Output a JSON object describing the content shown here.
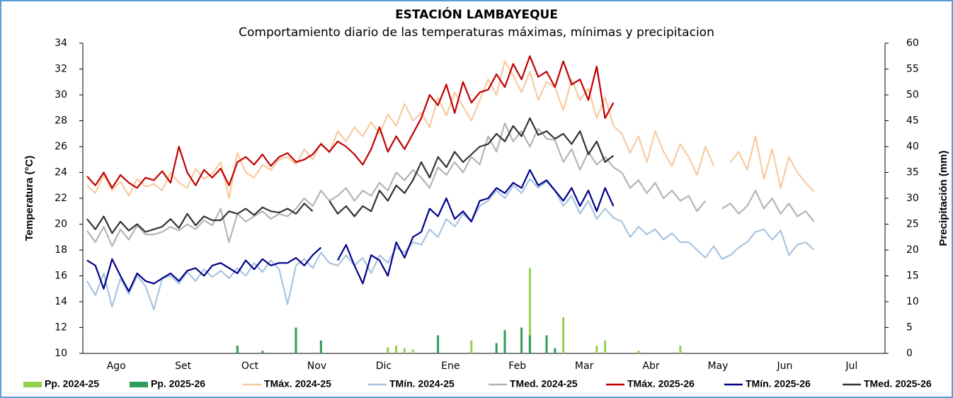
{
  "chart_data": {
    "type": "line",
    "title": "ESTACIÓN LAMBAYEQUE",
    "subtitle": "Comportamiento diario de las temperaturas máximas, mínimas y precipitacion",
    "y_label": "Temperatura (°C)",
    "y2_label": "Precipitación (mm)",
    "categories": [
      "Ago",
      "Set",
      "Oct",
      "Nov",
      "Dic",
      "Ene",
      "Feb",
      "Mar",
      "Abr",
      "May",
      "Jun",
      "Jul"
    ],
    "ylim": [
      10,
      34
    ],
    "yticks": [
      10,
      12,
      14,
      16,
      18,
      20,
      22,
      24,
      26,
      28,
      30,
      32,
      34
    ],
    "y2lim": [
      0,
      60
    ],
    "y2ticks": [
      0,
      5,
      10,
      15,
      20,
      25,
      30,
      35,
      40,
      45,
      50,
      55,
      60
    ],
    "series": [
      {
        "name": "Pp. 2024-25",
        "type": "bar",
        "axis": "y2",
        "color": "#92d050",
        "values": [
          null,
          null,
          null,
          null,
          [
            0,
            0,
            0,
            0,
            1.2,
            1.5,
            1.0,
            0.8
          ],
          [
            0,
            0,
            0,
            0,
            0,
            0,
            2.5,
            0
          ],
          [
            0,
            0,
            0,
            0,
            0,
            16.5,
            0,
            0
          ],
          [
            0,
            7.0,
            0,
            0,
            0,
            1.5,
            2.5,
            0
          ],
          [
            0,
            0,
            0.5,
            0,
            0,
            0,
            0,
            1.5
          ],
          null,
          null,
          null
        ]
      },
      {
        "name": "Pp. 2025-26",
        "type": "bar",
        "axis": "y2",
        "color": "#2e9d5b",
        "values": [
          null,
          null,
          [
            0,
            0,
            1.5,
            0,
            0,
            0.5,
            0,
            0
          ],
          [
            0,
            5.0,
            0,
            0,
            2.5,
            0,
            0,
            0
          ],
          null,
          [
            0,
            0,
            3.5,
            0,
            0,
            0,
            0,
            0
          ],
          [
            0,
            2.0,
            4.5,
            0,
            5.0,
            3.5,
            0,
            3.5
          ],
          [
            1.0,
            0,
            0,
            0,
            0,
            0,
            0,
            0
          ],
          null,
          null,
          null,
          null
        ]
      },
      {
        "name": "TMáx. 2024-25",
        "type": "line",
        "color": "#f8cba0",
        "values": [
          [
            23.0,
            22.4,
            23.8,
            22.6,
            23.3,
            22.2,
            23.5,
            22.9
          ],
          [
            23.1,
            22.6,
            24.0,
            23.2,
            22.8,
            24.3,
            23.5,
            23.9
          ],
          [
            24.8,
            22.0,
            25.5,
            24.0,
            23.6,
            24.6,
            24.2,
            25.0
          ],
          [
            25.2,
            24.6,
            25.8,
            25.0,
            26.3,
            25.5,
            27.2,
            26.4
          ],
          [
            27.5,
            26.8,
            27.9,
            27.0,
            28.5,
            27.6,
            29.3,
            28.0
          ],
          [
            28.6,
            27.5,
            29.8,
            28.4,
            30.2,
            29.1,
            28.0,
            29.6
          ],
          [
            31.2,
            30.0,
            32.6,
            31.5,
            30.2,
            31.8,
            29.6,
            31.0
          ],
          [
            30.6,
            28.8,
            31.2,
            29.6,
            30.5,
            28.2,
            29.8,
            27.6
          ],
          [
            27.0,
            25.5,
            26.8,
            24.8,
            27.2,
            25.6,
            24.5,
            26.2
          ],
          [
            25.2,
            23.8,
            26.0,
            24.5,
            null,
            24.8,
            25.6,
            24.2
          ],
          [
            26.8,
            23.5,
            25.8,
            22.8,
            25.2,
            24.0,
            23.2,
            22.5
          ],
          null
        ]
      },
      {
        "name": "TMín. 2024-25",
        "type": "line",
        "color": "#a9c4e0",
        "values": [
          [
            15.6,
            14.5,
            16.2,
            13.6,
            15.8,
            14.6,
            16.0,
            15.2
          ],
          [
            13.4,
            15.8,
            16.0,
            15.4,
            16.3,
            15.6,
            16.5,
            15.9
          ],
          [
            16.4,
            15.8,
            16.6,
            16.0,
            17.0,
            16.3,
            17.2,
            16.5
          ],
          [
            13.8,
            16.8,
            17.3,
            16.6,
            17.8,
            17.0,
            16.8,
            17.6
          ],
          [
            16.8,
            17.4,
            16.2,
            17.6,
            17.0,
            18.2,
            17.8,
            18.6
          ],
          [
            18.4,
            19.6,
            19.0,
            20.4,
            19.8,
            20.8,
            20.2,
            21.4
          ],
          [
            21.8,
            22.6,
            22.0,
            23.0,
            22.4,
            23.5,
            22.8,
            23.3
          ],
          [
            22.6,
            21.4,
            22.2,
            20.8,
            21.8,
            20.4,
            21.2,
            20.5
          ],
          [
            20.2,
            19.0,
            19.8,
            19.2,
            19.6,
            18.8,
            19.3,
            18.6
          ],
          [
            18.6,
            18.0,
            17.4,
            18.3,
            17.3,
            17.6,
            18.2,
            18.6
          ],
          [
            19.4,
            19.6,
            18.8,
            19.5,
            17.6,
            18.4,
            18.6,
            18.0
          ],
          null
        ]
      },
      {
        "name": "TMed. 2024-25",
        "type": "line",
        "color": "#b4b4b4",
        "values": [
          [
            19.5,
            18.6,
            19.8,
            18.3,
            19.6,
            18.8,
            19.9,
            19.2
          ],
          [
            19.2,
            19.4,
            19.8,
            19.5,
            20.0,
            19.6,
            20.3,
            19.9
          ],
          [
            21.2,
            18.6,
            20.8,
            20.2,
            20.6,
            21.0,
            20.4,
            20.8
          ],
          [
            20.6,
            21.2,
            22.0,
            21.4,
            22.6,
            21.8,
            22.2,
            22.8
          ],
          [
            21.8,
            22.6,
            22.2,
            23.2,
            22.6,
            24.0,
            23.4,
            24.2
          ],
          [
            23.6,
            22.8,
            24.4,
            23.8,
            24.8,
            24.0,
            25.2,
            24.6
          ],
          [
            26.8,
            25.6,
            27.8,
            26.4,
            27.2,
            26.0,
            27.4,
            26.6
          ],
          [
            26.5,
            24.8,
            25.8,
            24.2,
            25.6,
            24.6,
            25.2,
            24.4
          ],
          [
            24.0,
            22.8,
            23.4,
            22.4,
            23.2,
            22.0,
            22.6,
            21.8
          ],
          [
            22.2,
            21.0,
            21.8,
            null,
            21.2,
            21.6,
            20.8,
            21.4
          ],
          [
            22.6,
            21.2,
            22.0,
            20.8,
            21.6,
            20.6,
            21.0,
            20.2
          ],
          null
        ]
      },
      {
        "name": "TMáx. 2025-26",
        "type": "line",
        "color": "#c00000",
        "values": [
          [
            23.7,
            23.0,
            24.0,
            22.8,
            23.8,
            23.2,
            22.8,
            23.6
          ],
          [
            23.4,
            24.1,
            23.2,
            26.0,
            24.0,
            23.0,
            24.2,
            23.6
          ],
          [
            24.3,
            23.0,
            24.8,
            25.2,
            24.6,
            25.4,
            24.5,
            25.2
          ],
          [
            25.5,
            24.8,
            25.0,
            25.4,
            26.2,
            25.6,
            26.4,
            26.0
          ],
          [
            25.4,
            24.6,
            25.8,
            27.5,
            25.6,
            26.8,
            25.8,
            27.0
          ],
          [
            28.2,
            30.0,
            29.2,
            30.8,
            28.6,
            31.0,
            29.4,
            30.2
          ],
          [
            30.4,
            31.6,
            30.6,
            32.4,
            31.2,
            33.0,
            31.4,
            31.8
          ],
          [
            30.6,
            32.6,
            30.8,
            31.2,
            29.6,
            32.2,
            28.2,
            29.4
          ],
          null,
          null,
          null,
          null
        ]
      },
      {
        "name": "TMín. 2025-26",
        "type": "line",
        "color": "#00008b",
        "values": [
          [
            17.2,
            16.8,
            15.0,
            17.3,
            16.0,
            14.8,
            16.2,
            15.6
          ],
          [
            15.4,
            15.8,
            16.2,
            15.6,
            16.4,
            16.6,
            16.0,
            16.8
          ],
          [
            17.0,
            16.6,
            16.2,
            17.2,
            16.5,
            17.3,
            16.8,
            17.0
          ],
          [
            17.0,
            17.4,
            16.8,
            17.6,
            18.2,
            null,
            17.2,
            18.4
          ],
          [
            16.8,
            15.4,
            17.6,
            17.2,
            16.0,
            18.6,
            17.4,
            19.0
          ],
          [
            19.4,
            21.2,
            20.6,
            22.0,
            20.4,
            21.0,
            20.2,
            21.8
          ],
          [
            22.0,
            22.8,
            22.4,
            23.2,
            22.8,
            24.2,
            23.0,
            23.4
          ],
          [
            22.6,
            21.8,
            22.8,
            21.4,
            22.6,
            21.0,
            22.8,
            21.4
          ],
          null,
          null,
          null,
          null
        ]
      },
      {
        "name": "TMed. 2025-26",
        "type": "line",
        "color": "#333333",
        "values": [
          [
            20.4,
            19.6,
            20.6,
            19.3,
            20.2,
            19.5,
            20.0,
            19.4
          ],
          [
            19.6,
            19.8,
            20.4,
            19.7,
            20.8,
            19.9,
            20.6,
            20.3
          ],
          [
            20.3,
            21.0,
            20.8,
            21.2,
            20.7,
            21.3,
            21.0,
            20.9
          ],
          [
            21.2,
            20.8,
            21.6,
            21.0,
            null,
            21.8,
            20.8,
            21.4
          ],
          [
            20.6,
            21.4,
            21.0,
            22.6,
            21.8,
            23.0,
            22.4,
            23.4
          ],
          [
            24.8,
            23.6,
            25.2,
            24.4,
            25.6,
            24.8,
            25.4,
            26.0
          ],
          [
            26.2,
            27.0,
            26.4,
            27.6,
            26.8,
            28.2,
            26.9,
            27.2
          ],
          [
            26.6,
            27.0,
            26.2,
            27.2,
            25.4,
            26.4,
            24.8,
            25.3
          ],
          null,
          null,
          null,
          null
        ]
      }
    ]
  }
}
